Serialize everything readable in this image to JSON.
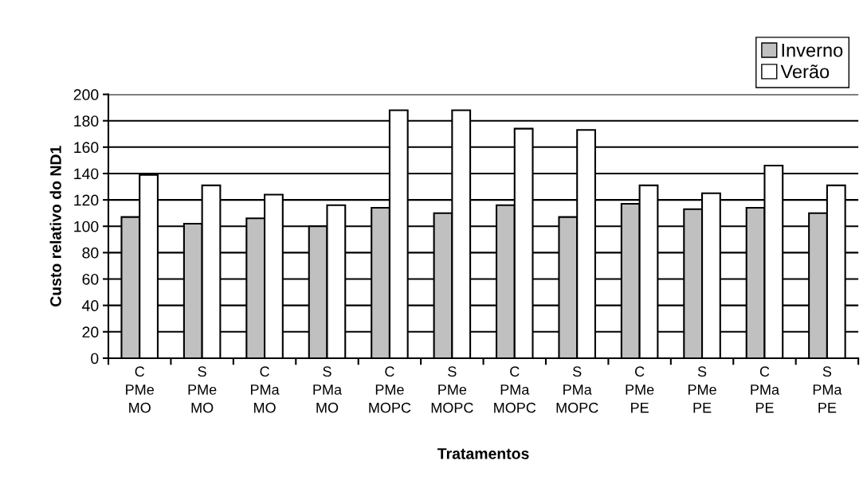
{
  "chart_data": {
    "type": "bar",
    "xlabel": "Tratamentos",
    "ylabel": "Custo relativo do ND1",
    "categories": [
      "C\nPMe\nMO",
      "S\nPMe\nMO",
      "C\nPMa\nMO",
      "S\nPMa\nMO",
      "C\nPMe\nMOPC",
      "S\nPMe\nMOPC",
      "C\nPMa\nMOPC",
      "S\nPMa\nMOPC",
      "C\nPMe\nPE",
      "S\nPMe\nPE",
      "C\nPMa\nPE",
      "S\nPMa\nPE"
    ],
    "series": [
      {
        "name": "Inverno",
        "color": "#c0c0c0",
        "values": [
          107,
          102,
          106,
          100,
          114,
          110,
          116,
          107,
          117,
          113,
          114,
          110
        ]
      },
      {
        "name": "Verão",
        "color": "#ffffff",
        "values": [
          139,
          131,
          124,
          116,
          188,
          188,
          174,
          173,
          131,
          125,
          146,
          131
        ]
      }
    ],
    "ylim": [
      0,
      200
    ],
    "yticks": [
      0,
      20,
      40,
      60,
      80,
      100,
      120,
      140,
      160,
      180,
      200
    ],
    "grid": "y",
    "legend": "top right"
  }
}
